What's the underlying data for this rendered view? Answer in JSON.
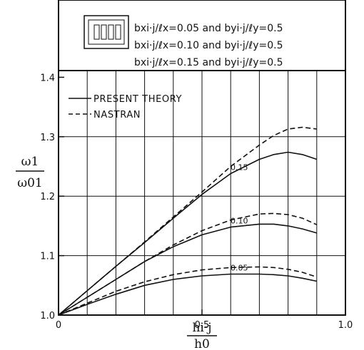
{
  "chart_data": {
    "type": "line",
    "xlim": [
      0,
      1.0
    ],
    "ylim": [
      1.0,
      1.4
    ],
    "y_top_extent": 1.53,
    "x_ticks": [
      0,
      0.5,
      1.0
    ],
    "x_tick_labels": [
      "0",
      "0.5",
      "1.0"
    ],
    "y_ticks": [
      1.0,
      1.1,
      1.2,
      1.3,
      1.4
    ],
    "y_tick_labels": [
      "1.0",
      "1.1",
      "1.2",
      "1.3",
      "1.4"
    ],
    "x_gridlines": [
      0.1,
      0.2,
      0.3,
      0.4,
      0.5,
      0.6,
      0.7,
      0.8,
      0.9
    ],
    "y_gridlines": [
      1.1,
      1.2,
      1.3
    ],
    "grid": true,
    "ylabel": {
      "num": "ω1",
      "den": "ω01"
    },
    "xlabel": {
      "num": "hi·j",
      "den": "h0"
    },
    "legend": {
      "placement": "upper-left",
      "entries": [
        {
          "label": "PRESENT THEORY",
          "style": "solid"
        },
        {
          "label": "NASTRAN",
          "style": "dashed"
        }
      ]
    },
    "annotations": [
      "bxi·j/ℓx=0.05 and byi·j/ℓy=0.5",
      "bxi·j/ℓx=0.10 and byi·j/ℓy=0.5",
      "bxi·j/ℓx=0.15 and byi·j/ℓy=0.5"
    ],
    "series": [
      {
        "label": "0.15",
        "style": "solid",
        "x": [
          0,
          0.1,
          0.2,
          0.3,
          0.4,
          0.5,
          0.6,
          0.7,
          0.75,
          0.8,
          0.85,
          0.9
        ],
        "y": [
          1.0,
          1.041,
          1.082,
          1.122,
          1.163,
          1.203,
          1.238,
          1.262,
          1.27,
          1.274,
          1.27,
          1.262
        ]
      },
      {
        "label": "",
        "style": "dashed",
        "x": [
          0,
          0.1,
          0.2,
          0.3,
          0.4,
          0.5,
          0.6,
          0.7,
          0.75,
          0.8,
          0.85,
          0.9
        ],
        "y": [
          1.0,
          1.041,
          1.082,
          1.123,
          1.165,
          1.207,
          1.25,
          1.286,
          1.302,
          1.313,
          1.316,
          1.313
        ]
      },
      {
        "label": "0.10",
        "style": "solid",
        "x": [
          0,
          0.1,
          0.2,
          0.3,
          0.4,
          0.5,
          0.6,
          0.7,
          0.75,
          0.8,
          0.85,
          0.9
        ],
        "y": [
          1.0,
          1.03,
          1.06,
          1.09,
          1.115,
          1.135,
          1.148,
          1.153,
          1.153,
          1.15,
          1.145,
          1.138
        ]
      },
      {
        "label": "",
        "style": "dashed",
        "x": [
          0,
          0.1,
          0.2,
          0.3,
          0.4,
          0.5,
          0.6,
          0.7,
          0.75,
          0.8,
          0.85,
          0.9
        ],
        "y": [
          1.0,
          1.03,
          1.06,
          1.09,
          1.118,
          1.142,
          1.16,
          1.17,
          1.171,
          1.169,
          1.163,
          1.152
        ]
      },
      {
        "label": "0.05",
        "style": "solid",
        "x": [
          0,
          0.1,
          0.2,
          0.3,
          0.4,
          0.5,
          0.6,
          0.7,
          0.75,
          0.8,
          0.85,
          0.9
        ],
        "y": [
          1.0,
          1.018,
          1.035,
          1.05,
          1.06,
          1.066,
          1.069,
          1.069,
          1.068,
          1.066,
          1.062,
          1.057
        ]
      },
      {
        "label": "",
        "style": "dashed",
        "x": [
          0,
          0.1,
          0.2,
          0.3,
          0.4,
          0.5,
          0.6,
          0.7,
          0.75,
          0.8,
          0.85,
          0.9
        ],
        "y": [
          1.0,
          1.02,
          1.04,
          1.056,
          1.068,
          1.076,
          1.08,
          1.081,
          1.08,
          1.077,
          1.072,
          1.064
        ]
      }
    ]
  }
}
